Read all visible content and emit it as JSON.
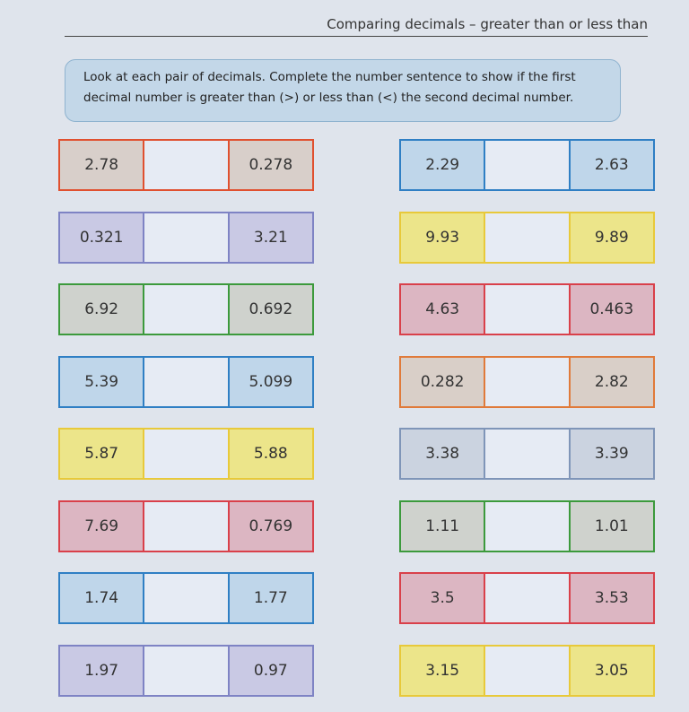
{
  "header": {
    "title": "Comparing decimals – greater than or less than"
  },
  "instructions": "Look at each pair of decimals. Complete the number sentence to show if the first decimal number is greater than (>) or less than (<) the second decimal number.",
  "left_column": [
    [
      "2.78",
      "0.278"
    ],
    [
      "0.321",
      "3.21"
    ],
    [
      "6.92",
      "0.692"
    ],
    [
      "5.39",
      "5.099"
    ],
    [
      "5.87",
      "5.88"
    ],
    [
      "7.69",
      "0.769"
    ],
    [
      "1.74",
      "1.77"
    ],
    [
      "1.97",
      "0.97"
    ]
  ],
  "right_column": [
    [
      "2.29",
      "2.63"
    ],
    [
      "9.93",
      "9.89"
    ],
    [
      "4.63",
      "0.463"
    ],
    [
      "0.282",
      "2.82"
    ],
    [
      "3.38",
      "3.39"
    ],
    [
      "1.11",
      "1.01"
    ],
    [
      "3.5",
      "3.53"
    ],
    [
      "3.15",
      "3.05"
    ]
  ]
}
